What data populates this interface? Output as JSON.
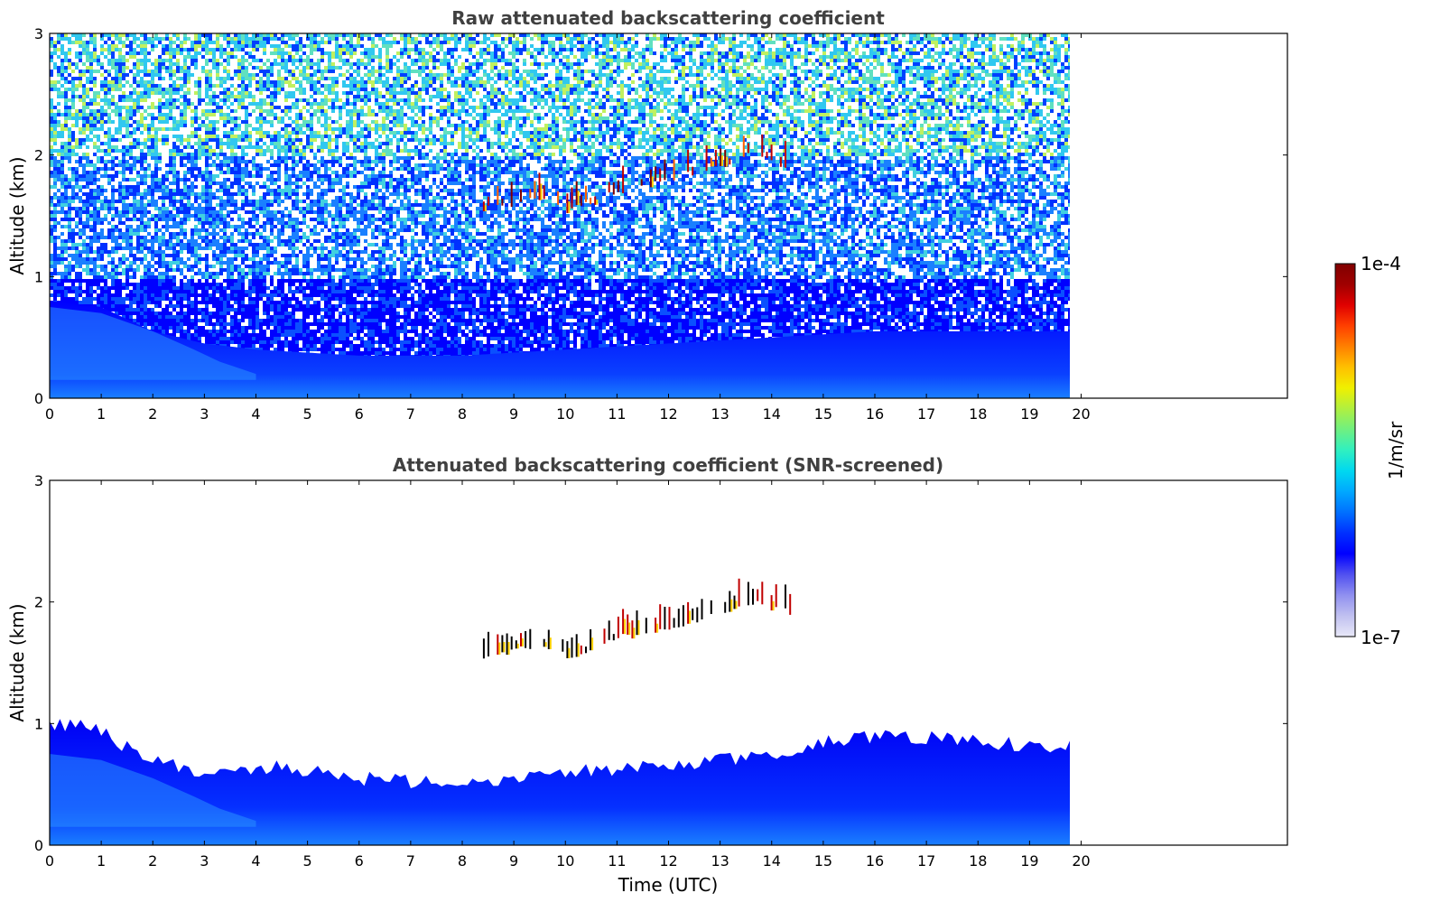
{
  "chart_data": [
    {
      "type": "heatmap",
      "title": "Raw attenuated backscattering coefficient",
      "xlabel": "",
      "ylabel": "Altitude (km)",
      "xlim": [
        0,
        24
      ],
      "ylim": [
        0,
        3
      ],
      "x_ticks": [
        "0",
        "1",
        "2",
        "3",
        "4",
        "5",
        "6",
        "7",
        "8",
        "9",
        "10",
        "11",
        "12",
        "13",
        "14",
        "15",
        "16",
        "17",
        "18",
        "19",
        "20"
      ],
      "y_ticks": [
        "0",
        "1",
        "2",
        "3"
      ],
      "data_extent_hours": [
        0,
        19.8
      ],
      "boundary_layer_top_km": [
        [
          0,
          0.8
        ],
        [
          1,
          0.75
        ],
        [
          2,
          0.55
        ],
        [
          3,
          0.45
        ],
        [
          4,
          0.4
        ],
        [
          6,
          0.35
        ],
        [
          8,
          0.35
        ],
        [
          10,
          0.4
        ],
        [
          12,
          0.45
        ],
        [
          14,
          0.5
        ],
        [
          16,
          0.55
        ],
        [
          18,
          0.55
        ],
        [
          19.8,
          0.55
        ]
      ],
      "cloud_layer_km": [
        [
          8.4,
          1.55
        ],
        [
          9,
          1.6
        ],
        [
          9.5,
          1.65
        ],
        [
          10,
          1.55
        ],
        [
          10.5,
          1.6
        ],
        [
          11,
          1.7
        ],
        [
          11.5,
          1.75
        ],
        [
          12,
          1.8
        ],
        [
          12.5,
          1.85
        ],
        [
          13,
          1.9
        ],
        [
          13.5,
          2.0
        ],
        [
          14,
          1.95
        ],
        [
          14.4,
          1.9
        ]
      ],
      "colorscale": "log"
    },
    {
      "type": "heatmap",
      "title": "Attenuated backscattering coefficient (SNR-screened)",
      "xlabel": "Time (UTC)",
      "ylabel": "Altitude (km)",
      "xlim": [
        0,
        24
      ],
      "ylim": [
        0,
        3
      ],
      "x_ticks": [
        "0",
        "1",
        "2",
        "3",
        "4",
        "5",
        "6",
        "7",
        "8",
        "9",
        "10",
        "11",
        "12",
        "13",
        "14",
        "15",
        "16",
        "17",
        "18",
        "19",
        "20"
      ],
      "y_ticks": [
        "0",
        "1",
        "2",
        "3"
      ],
      "data_extent_hours": [
        0,
        19.8
      ],
      "boundary_layer_top_km": [
        [
          0,
          0.98
        ],
        [
          0.5,
          0.98
        ],
        [
          1,
          0.95
        ],
        [
          1.5,
          0.8
        ],
        [
          2,
          0.72
        ],
        [
          2.5,
          0.65
        ],
        [
          3,
          0.6
        ],
        [
          3.5,
          0.6
        ],
        [
          4,
          0.65
        ],
        [
          5,
          0.62
        ],
        [
          6,
          0.55
        ],
        [
          7,
          0.52
        ],
        [
          8,
          0.52
        ],
        [
          9,
          0.55
        ],
        [
          10,
          0.6
        ],
        [
          11,
          0.62
        ],
        [
          12,
          0.65
        ],
        [
          13,
          0.7
        ],
        [
          14,
          0.75
        ],
        [
          14.5,
          0.8
        ],
        [
          15,
          0.85
        ],
        [
          16,
          0.9
        ],
        [
          17,
          0.88
        ],
        [
          18,
          0.85
        ],
        [
          19,
          0.82
        ],
        [
          19.8,
          0.82
        ]
      ],
      "cloud_layer_km": [
        [
          8.4,
          1.55
        ],
        [
          9,
          1.6
        ],
        [
          9.5,
          1.65
        ],
        [
          10,
          1.55
        ],
        [
          10.5,
          1.6
        ],
        [
          11,
          1.7
        ],
        [
          11.5,
          1.75
        ],
        [
          12,
          1.8
        ],
        [
          12.5,
          1.85
        ],
        [
          13,
          1.9
        ],
        [
          13.5,
          2.0
        ],
        [
          14,
          1.95
        ],
        [
          14.4,
          1.9
        ]
      ],
      "colorscale": "log"
    }
  ],
  "colorbar": {
    "label": "1/m/sr",
    "max_label": "1e-4",
    "min_label": "1e-7",
    "colors": [
      "#e8e8f8",
      "#c0c0f0",
      "#9090f0",
      "#5050f0",
      "#0000ff",
      "#0030ff",
      "#0070ff",
      "#00a8ff",
      "#00d8f0",
      "#30f0c0",
      "#70f080",
      "#b0f040",
      "#f0f000",
      "#ffc000",
      "#ff8000",
      "#ff4000",
      "#e00000",
      "#a00000",
      "#800000"
    ]
  }
}
